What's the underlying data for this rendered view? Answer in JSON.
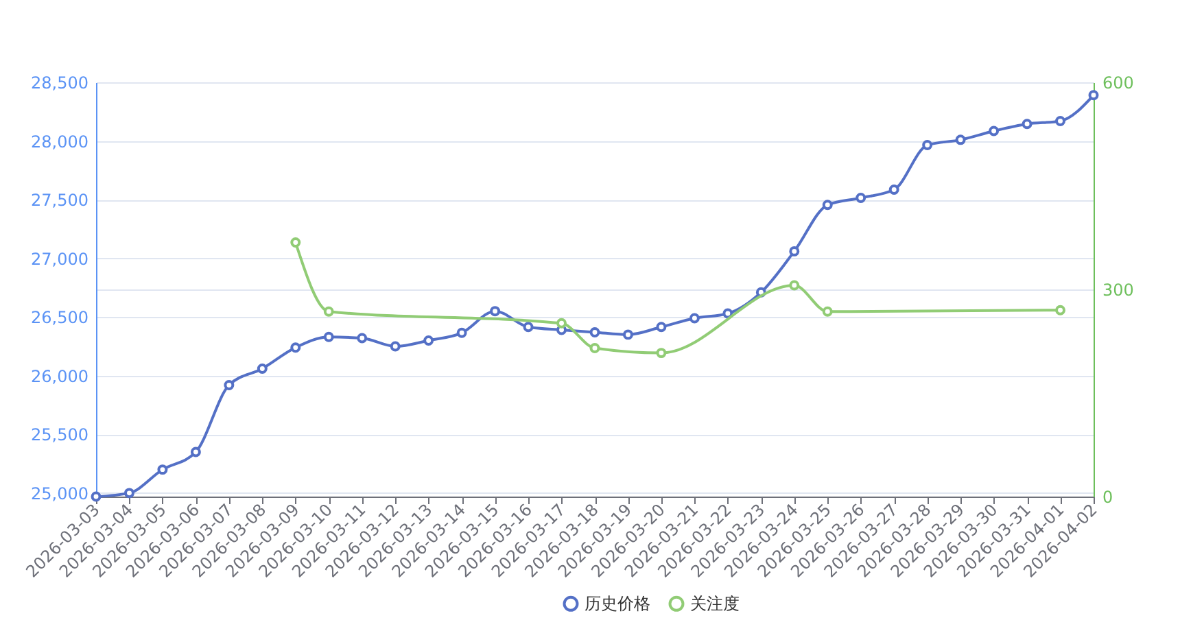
{
  "chart_data": {
    "type": "line",
    "categories": [
      "2026-03-03",
      "2026-03-04",
      "2026-03-05",
      "2026-03-06",
      "2026-03-07",
      "2026-03-08",
      "2026-03-09",
      "2026-03-10",
      "2026-03-11",
      "2026-03-12",
      "2026-03-13",
      "2026-03-14",
      "2026-03-15",
      "2026-03-16",
      "2026-03-17",
      "2026-03-18",
      "2026-03-19",
      "2026-03-20",
      "2026-03-21",
      "2026-03-22",
      "2026-03-23",
      "2026-03-24",
      "2026-03-25",
      "2026-03-26",
      "2026-03-27",
      "2026-03-28",
      "2026-03-29",
      "2026-03-30",
      "2026-03-31",
      "2026-04-01",
      "2026-04-02"
    ],
    "series": [
      {
        "name": "历史价格",
        "color": "#5470c6",
        "values": [
          24970,
          25000,
          25200,
          25350,
          25920,
          26060,
          26240,
          26330,
          26320,
          26250,
          26300,
          26365,
          26550,
          26415,
          26390,
          26370,
          26350,
          26415,
          26490,
          26530,
          26710,
          27060,
          27455,
          27515,
          27585,
          27965,
          28010,
          28085,
          28145,
          28170,
          28390
        ]
      },
      {
        "name": "关注度",
        "color": "#91cc75",
        "axis": "y2",
        "values": [
          null,
          null,
          null,
          null,
          null,
          null,
          368,
          268,
          null,
          null,
          null,
          null,
          null,
          null,
          251,
          215,
          null,
          208,
          null,
          null,
          null,
          306,
          268,
          null,
          null,
          null,
          null,
          null,
          null,
          270,
          null
        ]
      }
    ],
    "ylim": [
      24970,
      28500
    ],
    "yticks": [
      {
        "value": 25000,
        "label": "25,000"
      },
      {
        "value": 25500,
        "label": "25,500"
      },
      {
        "value": 26000,
        "label": "26,000"
      },
      {
        "value": 26500,
        "label": "26,500"
      },
      {
        "value": 27000,
        "label": "27,000"
      },
      {
        "value": 27500,
        "label": "27,500"
      },
      {
        "value": 28000,
        "label": "28,000"
      },
      {
        "value": 28500,
        "label": "28,500"
      }
    ],
    "y2lim": [
      0,
      600
    ],
    "y2ticks": [
      0,
      300,
      600
    ],
    "grid": "y",
    "legend": "bottom",
    "marker": "circle",
    "line_style": "solid"
  }
}
